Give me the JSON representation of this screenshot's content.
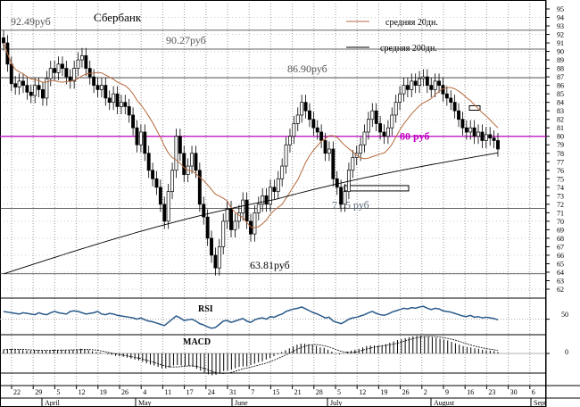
{
  "chart_data": {
    "type": "candlestick",
    "title": "Сбербанк",
    "instrument": "Сбербанк",
    "legend": [
      {
        "label": "средняя 20дн.",
        "color": "#b5693c"
      },
      {
        "label": "средняя 200дн.",
        "color": "#000000"
      }
    ],
    "price_axis": {
      "min": 62,
      "max": 95,
      "labels": [
        "95",
        "94",
        "93",
        "92",
        "91",
        "90",
        "89",
        "88",
        "87",
        "86",
        "85",
        "84",
        "83",
        "82",
        "81",
        "80",
        "79",
        "78",
        "77",
        "76",
        "75",
        "74",
        "73",
        "72",
        "71",
        "70",
        "69",
        "68",
        "67",
        "66",
        "65",
        "64",
        "63",
        "62"
      ]
    },
    "levels": [
      {
        "label": "92.49руб",
        "value": 92.49,
        "color": "#555555"
      },
      {
        "label": "90.27руб",
        "value": 90.27,
        "color": "#555555"
      },
      {
        "label": "86.90руб",
        "value": 86.9,
        "color": "#555555"
      },
      {
        "label": "80 руб",
        "value": 80,
        "color": "#c000c0"
      },
      {
        "label": "71.5 руб",
        "value": 71.5,
        "color": "#607080"
      },
      {
        "label": "63.81руб",
        "value": 63.81,
        "color": "#000000"
      }
    ],
    "x_ticks": [
      "22",
      "29",
      "5",
      "12",
      "19",
      "26",
      "4",
      "11",
      "17",
      "24",
      "31",
      "7",
      "15",
      "21",
      "28",
      "5",
      "12",
      "19",
      "26",
      "2",
      "9",
      "16",
      "23",
      "30",
      "6"
    ],
    "months": [
      "April",
      "May",
      "June",
      "July",
      "August",
      "Sept"
    ],
    "close": [
      91.0,
      88.5,
      86.2,
      85.8,
      86.5,
      86.0,
      85.2,
      84.8,
      86.0,
      85.5,
      84.5,
      86.8,
      88.0,
      87.5,
      88.5,
      88.0,
      87.0,
      86.5,
      88.0,
      89.0,
      89.5,
      88.0,
      87.0,
      86.0,
      85.5,
      86.0,
      84.5,
      84.0,
      85.0,
      83.5,
      84.0,
      83.5,
      82.5,
      81.0,
      79.0,
      80.5,
      78.0,
      76.0,
      75.0,
      74.0,
      72.0,
      70.0,
      73.5,
      76.0,
      80.0,
      78.0,
      75.5,
      76.5,
      78.0,
      76.0,
      72.0,
      70.5,
      68.0,
      66.0,
      64.5,
      67.0,
      70.0,
      71.5,
      69.0,
      70.0,
      71.0,
      72.5,
      70.0,
      68.5,
      71.0,
      72.0,
      73.0,
      72.0,
      74.0,
      73.5,
      75.0,
      76.5,
      79.0,
      80.0,
      81.5,
      82.5,
      84.0,
      83.0,
      82.0,
      81.0,
      80.5,
      79.5,
      78.0,
      78.5,
      75.0,
      74.0,
      72.0,
      73.5,
      76.0,
      77.5,
      78.0,
      79.0,
      80.5,
      82.0,
      83.0,
      81.5,
      80.5,
      80.0,
      81.0,
      82.5,
      84.0,
      85.0,
      86.0,
      85.5,
      86.5,
      86.0,
      86.8,
      87.0,
      86.0,
      85.5,
      86.5,
      86.0,
      85.0,
      84.5,
      84.0,
      83.0,
      82.0,
      81.0,
      80.5,
      81.0,
      80.0,
      80.5,
      79.5,
      80.2,
      79.8,
      79.5,
      78.5
    ],
    "rsi_label": "RSI",
    "rsi_axis": {
      "labels": [
        "50"
      ]
    },
    "rsi": [
      62,
      61,
      60,
      59,
      58,
      60,
      59,
      58,
      57,
      60,
      58,
      57,
      60,
      62,
      60,
      59,
      58,
      62,
      63,
      62,
      60,
      58,
      59,
      60,
      62,
      58,
      57,
      59,
      58,
      56,
      55,
      54,
      53,
      52,
      50,
      52,
      49,
      47,
      46,
      44,
      42,
      40,
      45,
      50,
      55,
      52,
      48,
      49,
      50,
      47,
      43,
      41,
      38,
      36,
      37,
      42,
      47,
      48,
      45,
      47,
      49,
      51,
      47,
      45,
      49,
      51,
      52,
      50,
      54,
      53,
      56,
      58,
      62,
      64,
      66,
      67,
      69,
      66,
      63,
      60,
      58,
      55,
      52,
      53,
      47,
      45,
      43,
      46,
      50,
      52,
      53,
      55,
      57,
      60,
      62,
      59,
      57,
      56,
      58,
      61,
      63,
      65,
      67,
      66,
      68,
      67,
      69,
      70,
      67,
      65,
      67,
      66,
      63,
      62,
      61,
      59,
      57,
      55,
      54,
      56,
      53,
      54,
      52,
      53,
      52,
      51,
      49
    ],
    "macd_label": "MACD",
    "macd_axis": {
      "labels": [
        "0"
      ]
    },
    "macd": [
      0.8,
      0.9,
      1.0,
      0.9,
      0.8,
      0.7,
      0.6,
      0.6,
      0.7,
      0.7,
      0.6,
      0.6,
      0.7,
      0.8,
      0.8,
      0.8,
      0.7,
      0.7,
      0.8,
      0.9,
      1.0,
      0.9,
      0.7,
      0.5,
      0.3,
      0.2,
      0.0,
      -0.2,
      -0.3,
      -0.5,
      -0.6,
      -0.7,
      -0.9,
      -1.1,
      -1.3,
      -1.5,
      -1.8,
      -2.1,
      -2.4,
      -2.6,
      -2.9,
      -3.2,
      -3.2,
      -3.0,
      -2.6,
      -2.5,
      -2.6,
      -2.7,
      -2.7,
      -2.9,
      -3.3,
      -3.7,
      -4.1,
      -4.5,
      -4.7,
      -4.6,
      -4.2,
      -3.8,
      -3.7,
      -3.5,
      -3.2,
      -2.9,
      -2.8,
      -2.8,
      -2.5,
      -2.2,
      -1.9,
      -1.7,
      -1.3,
      -1.0,
      -0.6,
      -0.2,
      0.3,
      0.7,
      1.1,
      1.5,
      1.9,
      2.1,
      2.1,
      2.0,
      1.8,
      1.6,
      1.3,
      1.2,
      0.8,
      0.4,
      -0.1,
      -0.2,
      0.1,
      0.4,
      0.6,
      0.8,
      1.0,
      1.3,
      1.6,
      1.7,
      1.7,
      1.7,
      1.8,
      2.0,
      2.3,
      2.6,
      2.9,
      3.1,
      3.3,
      3.5,
      3.7,
      3.8,
      3.8,
      3.7,
      3.6,
      3.5,
      3.4,
      3.2,
      3.0,
      2.8,
      2.5,
      2.2,
      1.9,
      1.6,
      1.4,
      1.3,
      1.1,
      1.0,
      0.8,
      0.7,
      0.6,
      0.5,
      0.3
    ]
  }
}
